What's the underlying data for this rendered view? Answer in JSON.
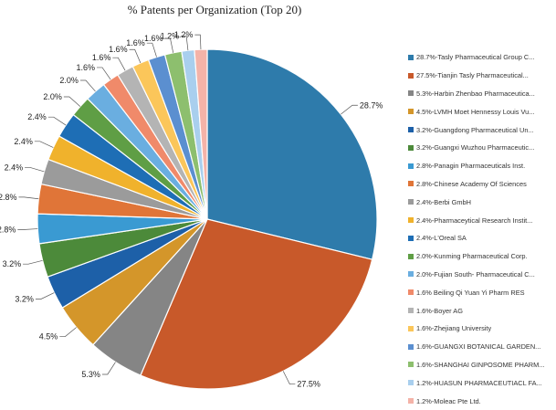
{
  "chart_data": {
    "type": "pie",
    "title": "% Patents per Organization (Top 20)",
    "slices": [
      {
        "label": "28.7%",
        "legend": "28.7%-Tasly Pharmaceutical Group C...",
        "value": 28.7,
        "color": "#2e7bab"
      },
      {
        "label": "27.5%",
        "legend": "27.5%-Tianjin Tasly Pharmaceutical...",
        "value": 27.5,
        "color": "#c8592a"
      },
      {
        "label": "5.3%",
        "legend": "5.3%-Harbin Zhenbao Pharmaceutica...",
        "value": 5.3,
        "color": "#858585"
      },
      {
        "label": "4.5%",
        "legend": "4.5%-LVMH Moet Hennessy Louis Vu...",
        "value": 4.5,
        "color": "#d4962a"
      },
      {
        "label": "3.2%",
        "legend": "3.2%-Guangdong Pharmaceutical Un...",
        "value": 3.2,
        "color": "#1d60a8"
      },
      {
        "label": "3.2%",
        "legend": "3.2%-Guangxi Wuzhou Pharmaceutic...",
        "value": 3.2,
        "color": "#4c8a3a"
      },
      {
        "label": "2.8%",
        "legend": "2.8%-Panagin Pharmaceuticals Inst.",
        "value": 2.8,
        "color": "#3a9ad2"
      },
      {
        "label": "2.8%",
        "legend": "2.8%-Chinese Academy Of Sciences",
        "value": 2.8,
        "color": "#e07538"
      },
      {
        "label": "2.4%",
        "legend": "2.4%-Berbi GmbH",
        "value": 2.4,
        "color": "#9b9b9b"
      },
      {
        "label": "2.4%",
        "legend": "2.4%-Pharmaceytical Research Instit...",
        "value": 2.4,
        "color": "#f0b22c"
      },
      {
        "label": "2.4%",
        "legend": "2.4%-L'Oreal SA",
        "value": 2.4,
        "color": "#1e6eb5"
      },
      {
        "label": "2.0%",
        "legend": "2.0%-Kunming Pharmaceutical Corp.",
        "value": 2.0,
        "color": "#5f9e45"
      },
      {
        "label": "2.0%",
        "legend": "2.0%-Fujian South- Pharmaceutical C...",
        "value": 2.0,
        "color": "#6aaee0"
      },
      {
        "label": "1.6%",
        "legend": "1.6% Beiling Qi Yuan Yi Pharm RES",
        "value": 1.6,
        "color": "#f08a6a"
      },
      {
        "label": "1.6%",
        "legend": "1.6%-Boyer AG",
        "value": 1.6,
        "color": "#b4b4b4"
      },
      {
        "label": "1.6%",
        "legend": "1.6%-Zhejiang University",
        "value": 1.6,
        "color": "#fbc65a"
      },
      {
        "label": "1.6%",
        "legend": "1.6%-GUANGXI BOTANICAL GARDEN...",
        "value": 1.6,
        "color": "#5b8fd0"
      },
      {
        "label": "1.6%",
        "legend": "1.6%-SHANGHAI GINPOSOME PHARM...",
        "value": 1.6,
        "color": "#8dbf6e"
      },
      {
        "label": "1.2%",
        "legend": "1.2%-HUASUN PHARMACEUTIACL FA...",
        "value": 1.2,
        "color": "#a9cfee"
      },
      {
        "label": "1.2%",
        "legend": "1.2%-Moleac Pte Ltd.",
        "value": 1.2,
        "color": "#f4b3a8"
      }
    ],
    "legend_position": "right"
  }
}
